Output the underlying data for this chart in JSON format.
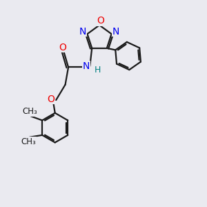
{
  "bg_color": "#eaeaf0",
  "bond_color": "#1a1a1a",
  "N_color": "#0000ee",
  "O_color": "#ee0000",
  "H_color": "#008080",
  "font_size": 10,
  "line_width": 1.6,
  "figsize": [
    3.0,
    3.0
  ],
  "dpi": 100,
  "xlim": [
    0,
    10
  ],
  "ylim": [
    0,
    10
  ]
}
